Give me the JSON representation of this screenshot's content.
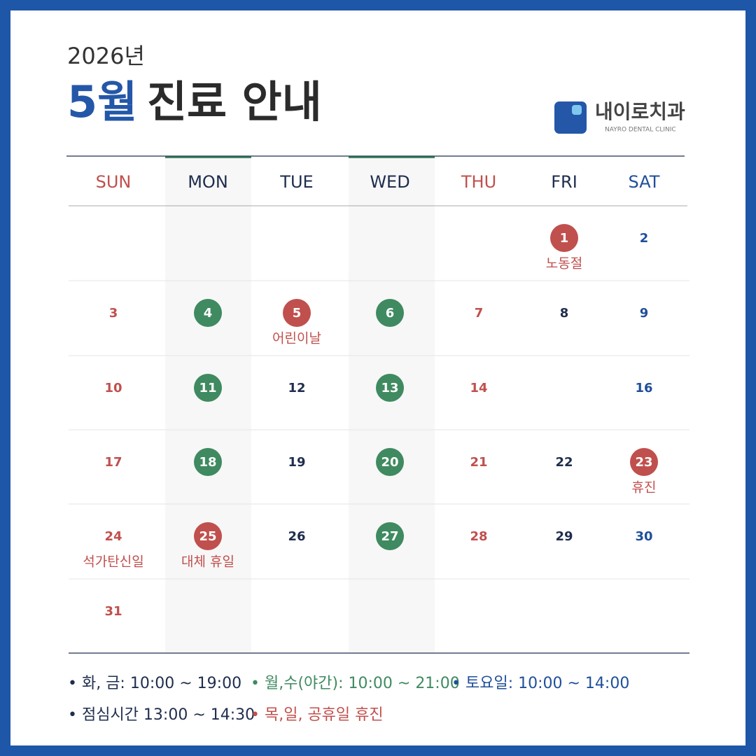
{
  "header": {
    "year": "2026년",
    "month": "5월",
    "title": "진료 안내",
    "month_color": "#2457a8"
  },
  "logo": {
    "name": "내이로치과",
    "subtitle": "NAYRO DENTAL CLINIC"
  },
  "calendar": {
    "shaded_columns": [
      1,
      3
    ],
    "weekdays": [
      {
        "label": "SUN",
        "color": "#c0504d"
      },
      {
        "label": "MON",
        "color": "#1f2d4d"
      },
      {
        "label": "TUE",
        "color": "#1f2d4d"
      },
      {
        "label": "WED",
        "color": "#1f2d4d"
      },
      {
        "label": "THU",
        "color": "#c0504d"
      },
      {
        "label": "FRI",
        "color": "#1f2d4d"
      },
      {
        "label": "SAT",
        "color": "#1f4f9a"
      }
    ],
    "weeks": [
      [
        null,
        null,
        null,
        null,
        null,
        {
          "day": 1,
          "circle": "#c0504d",
          "note": "노동절"
        },
        {
          "day": 2
        }
      ],
      [
        {
          "day": 3
        },
        {
          "day": 4,
          "circle": "#3f8a60"
        },
        {
          "day": 5,
          "circle": "#c0504d",
          "note": "어린이날"
        },
        {
          "day": 6,
          "circle": "#3f8a60"
        },
        {
          "day": 7
        },
        {
          "day": 8
        },
        {
          "day": 9
        }
      ],
      [
        {
          "day": 10
        },
        {
          "day": 11,
          "circle": "#3f8a60"
        },
        {
          "day": 12
        },
        {
          "day": 13,
          "circle": "#3f8a60"
        },
        {
          "day": 14
        },
        null,
        {
          "day": 16
        }
      ],
      [
        {
          "day": 17
        },
        {
          "day": 18,
          "circle": "#3f8a60"
        },
        {
          "day": 19
        },
        {
          "day": 20,
          "circle": "#3f8a60"
        },
        {
          "day": 21
        },
        {
          "day": 22
        },
        {
          "day": 23,
          "circle": "#c0504d",
          "note": "휴진"
        }
      ],
      [
        {
          "day": 24,
          "note": "석가탄신일"
        },
        {
          "day": 25,
          "circle": "#c0504d",
          "note": "대체 휴일"
        },
        {
          "day": 26
        },
        {
          "day": 27,
          "circle": "#3f8a60"
        },
        {
          "day": 28
        },
        {
          "day": 29
        },
        {
          "day": 30
        }
      ],
      [
        {
          "day": 31
        },
        null,
        null,
        null,
        null,
        null,
        null
      ]
    ]
  },
  "footer": {
    "lines": [
      [
        {
          "text": "• 화, 금: 10:00 ~ 19:00",
          "color": "#1f2d4d"
        },
        {
          "text": "• 월,수(야간): 10:00 ~ 21:00",
          "color": "#3f8a60"
        },
        {
          "text": "• 토요일: 10:00 ~ 14:00",
          "color": "#1f4f9a"
        }
      ],
      [
        {
          "text": "• 점심시간 13:00 ~ 14:30",
          "color": "#1f2d4d"
        },
        {
          "text": "• 목,일, 공휴일 휴진",
          "color": "#c0504d"
        }
      ]
    ]
  }
}
